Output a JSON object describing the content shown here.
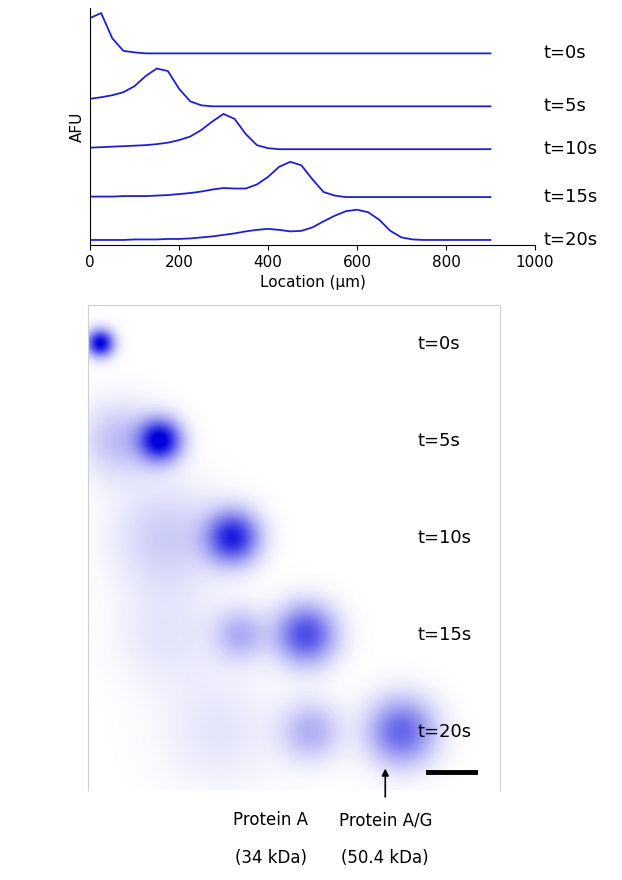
{
  "chart_data": [
    {
      "type": "line",
      "xlabel": "Location (μm)",
      "ylabel": "AFU",
      "xlim": [
        0,
        1000
      ],
      "xticks": [
        0,
        200,
        400,
        600,
        800,
        1000
      ],
      "ylim": [
        0.4,
        5.1
      ],
      "tick_labels": "x",
      "color": "#1f1fd0",
      "x": [
        0,
        25,
        50,
        75,
        100,
        125,
        150,
        175,
        200,
        225,
        250,
        275,
        300,
        325,
        350,
        375,
        400,
        425,
        450,
        475,
        500,
        525,
        550,
        575,
        600,
        625,
        650,
        675,
        700,
        725,
        750,
        775,
        800,
        825,
        850,
        875,
        900
      ],
      "series": [
        {
          "name": "t=0s",
          "values": [
            4.9,
            5.0,
            4.5,
            4.25,
            4.22,
            4.2,
            4.2,
            4.2,
            4.2,
            4.2,
            4.2,
            4.2,
            4.2,
            4.2,
            4.2,
            4.2,
            4.2,
            4.2,
            4.2,
            4.2,
            4.2,
            4.2,
            4.2,
            4.2,
            4.2,
            4.2,
            4.2,
            4.2,
            4.2,
            4.2,
            4.2,
            4.2,
            4.2,
            4.2,
            4.2,
            4.2,
            4.2
          ]
        },
        {
          "name": "t=5s",
          "values": [
            3.3,
            3.33,
            3.37,
            3.43,
            3.55,
            3.75,
            3.9,
            3.85,
            3.5,
            3.25,
            3.17,
            3.15,
            3.15,
            3.15,
            3.15,
            3.15,
            3.15,
            3.15,
            3.15,
            3.15,
            3.15,
            3.15,
            3.15,
            3.15,
            3.15,
            3.15,
            3.15,
            3.15,
            3.15,
            3.15,
            3.15,
            3.15,
            3.15,
            3.15,
            3.15,
            3.15,
            3.15
          ]
        },
        {
          "name": "t=10s",
          "values": [
            2.33,
            2.34,
            2.35,
            2.36,
            2.37,
            2.38,
            2.4,
            2.43,
            2.48,
            2.55,
            2.68,
            2.85,
            3.0,
            2.9,
            2.6,
            2.38,
            2.32,
            2.3,
            2.3,
            2.3,
            2.3,
            2.3,
            2.3,
            2.3,
            2.3,
            2.3,
            2.3,
            2.3,
            2.3,
            2.3,
            2.3,
            2.3,
            2.3,
            2.3,
            2.3,
            2.3,
            2.3
          ]
        },
        {
          "name": "t=15s",
          "values": [
            1.36,
            1.36,
            1.36,
            1.37,
            1.37,
            1.37,
            1.38,
            1.39,
            1.41,
            1.43,
            1.46,
            1.5,
            1.53,
            1.52,
            1.52,
            1.6,
            1.75,
            1.95,
            2.05,
            1.98,
            1.7,
            1.45,
            1.38,
            1.35,
            1.35,
            1.35,
            1.35,
            1.35,
            1.35,
            1.35,
            1.35,
            1.35,
            1.35,
            1.35,
            1.35,
            1.35,
            1.35
          ]
        },
        {
          "name": "t=20s",
          "values": [
            0.5,
            0.5,
            0.5,
            0.5,
            0.51,
            0.51,
            0.51,
            0.52,
            0.52,
            0.53,
            0.55,
            0.57,
            0.6,
            0.63,
            0.67,
            0.7,
            0.72,
            0.7,
            0.67,
            0.68,
            0.75,
            0.87,
            0.98,
            1.07,
            1.1,
            1.05,
            0.9,
            0.68,
            0.55,
            0.51,
            0.5,
            0.5,
            0.5,
            0.5,
            0.5,
            0.5,
            0.5
          ]
        }
      ]
    },
    {
      "type": "image",
      "color": "#0000dd",
      "xlim": [
        0,
        790
      ],
      "tick_labels": false,
      "rows": [
        {
          "label": "t=0s",
          "bands": [
            {
              "position": 23,
              "intensity": 1.0,
              "width": 18
            }
          ]
        },
        {
          "label": "t=5s",
          "bands": [
            {
              "position": 138,
              "intensity": 1.0,
              "width": 28
            },
            {
              "position": 60,
              "intensity": 0.25,
              "width": 50
            }
          ]
        },
        {
          "label": "t=10s",
          "bands": [
            {
              "position": 277,
              "intensity": 0.85,
              "width": 35
            },
            {
              "position": 150,
              "intensity": 0.2,
              "width": 70
            }
          ]
        },
        {
          "label": "t=15s",
          "bands": [
            {
              "position": 417,
              "intensity": 0.7,
              "width": 40
            },
            {
              "position": 292,
              "intensity": 0.3,
              "width": 35
            },
            {
              "position": 150,
              "intensity": 0.1,
              "width": 70
            }
          ]
        },
        {
          "label": "t=20s",
          "bands": [
            {
              "position": 600,
              "intensity": 0.6,
              "width": 45
            },
            {
              "position": 427,
              "intensity": 0.3,
              "width": 40
            },
            {
              "position": 250,
              "intensity": 0.1,
              "width": 80
            }
          ]
        }
      ],
      "annotations": [
        {
          "text": "Protein A",
          "note": "(34 kDa)",
          "position": 350
        },
        {
          "text": "Protein A/G",
          "note": "(50.4 kDa)",
          "position": 570,
          "marker": "arrow"
        }
      ]
    }
  ]
}
